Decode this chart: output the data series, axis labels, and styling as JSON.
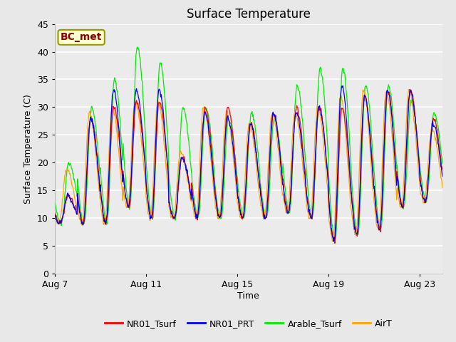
{
  "title": "Surface Temperature",
  "xlabel": "Time",
  "ylabel": "Surface Temperature (C)",
  "ylim": [
    0,
    45
  ],
  "yticks": [
    0,
    5,
    10,
    15,
    20,
    25,
    30,
    35,
    40,
    45
  ],
  "annotation": "BC_met",
  "annotation_color": "#8B0000",
  "annotation_bg": "#FFFFD0",
  "annotation_edge": "#999900",
  "series_colors": {
    "NR01_Tsurf": "#FF0000",
    "NR01_PRT": "#0000FF",
    "Arable_Tsurf": "#00EE00",
    "AirT": "#FFA500"
  },
  "series_linewidth": 0.9,
  "fig_facecolor": "#E8E8E8",
  "plot_facecolor": "#EBEBEB",
  "grid_color": "#FFFFFF",
  "x_tick_labels": [
    "Aug 7",
    "Aug 11",
    "Aug 15",
    "Aug 19",
    "Aug 23"
  ],
  "n_days": 17,
  "pts_per_day": 48,
  "peaks_NR01": [
    14,
    28,
    30,
    31,
    31,
    21,
    30,
    30,
    27,
    29,
    30,
    30,
    30,
    32,
    33,
    33,
    28
  ],
  "peaks_PRT": [
    14,
    28,
    33,
    33,
    33,
    21,
    29,
    28,
    27,
    29,
    29,
    30,
    34,
    32,
    33,
    33,
    27
  ],
  "peaks_Arable": [
    20,
    30,
    35,
    41,
    38,
    30,
    30,
    28,
    29,
    28,
    34,
    37,
    37,
    34,
    34,
    31,
    29
  ],
  "peaks_AirT": [
    19,
    29,
    30,
    31,
    31,
    22,
    30,
    29,
    27,
    29,
    29,
    30,
    32,
    33,
    33,
    33,
    26
  ],
  "troughs": [
    9,
    9,
    9,
    12,
    10,
    10,
    10,
    10,
    10,
    10,
    11,
    10,
    6,
    7,
    8,
    12,
    13
  ]
}
